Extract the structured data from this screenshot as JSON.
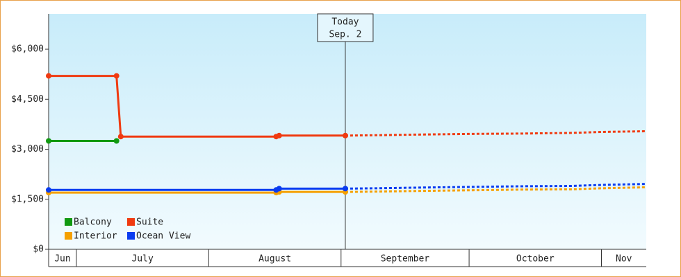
{
  "chart_data": {
    "type": "line",
    "ylim": [
      0,
      7060
    ],
    "yticks": [
      {
        "value": 0,
        "label": "$0"
      },
      {
        "value": 1500,
        "label": "$1,500"
      },
      {
        "value": 3000,
        "label": "$3,000"
      },
      {
        "value": 4500,
        "label": "$4,500"
      },
      {
        "value": 6000,
        "label": "$6,000"
      }
    ],
    "xlim": [
      -6.5,
      133.5
    ],
    "month_bands": [
      {
        "label": "Jun",
        "start": -6.5,
        "end": 0
      },
      {
        "label": "July",
        "start": 0,
        "end": 31
      },
      {
        "label": "August",
        "start": 31,
        "end": 62
      },
      {
        "label": "September",
        "start": 62,
        "end": 92
      },
      {
        "label": "October",
        "start": 92,
        "end": 123
      },
      {
        "label": "Nov",
        "start": 123,
        "end": 133.5
      }
    ],
    "annotation": {
      "lines": [
        "Today",
        "Sep. 2"
      ],
      "x": 63
    },
    "series": [
      {
        "name": "Balcony",
        "color": "#119911",
        "x": [
          -6.5,
          9.4
        ],
        "values": [
          3250,
          3250
        ],
        "forecast_x": [],
        "forecast_values": []
      },
      {
        "name": "Interior",
        "color": "#f5a000",
        "x": [
          -6.5,
          46.8,
          47.5,
          63
        ],
        "values": [
          1700,
          1700,
          1720,
          1720
        ],
        "forecast_x": [
          63,
          70,
          80,
          92,
          104,
          116,
          123,
          133.5
        ],
        "forecast_values": [
          1720,
          1730,
          1750,
          1770,
          1790,
          1800,
          1830,
          1860
        ]
      },
      {
        "name": "Suite",
        "color": "#f03a10",
        "x": [
          -6.5,
          9.4,
          10.4,
          46.8,
          47.5,
          63
        ],
        "values": [
          5200,
          5200,
          3380,
          3380,
          3410,
          3410
        ],
        "forecast_x": [
          63,
          70,
          80,
          92,
          104,
          116,
          123,
          133.5
        ],
        "forecast_values": [
          3410,
          3420,
          3440,
          3460,
          3470,
          3490,
          3520,
          3540
        ]
      },
      {
        "name": "Ocean View",
        "color": "#0a3cf0",
        "x": [
          -6.5,
          46.8,
          47.5,
          63
        ],
        "values": [
          1780,
          1780,
          1820,
          1820
        ],
        "forecast_x": [
          63,
          70,
          80,
          92,
          104,
          116,
          123,
          133.5
        ],
        "forecast_values": [
          1820,
          1830,
          1850,
          1870,
          1890,
          1900,
          1930,
          1960
        ]
      }
    ]
  }
}
